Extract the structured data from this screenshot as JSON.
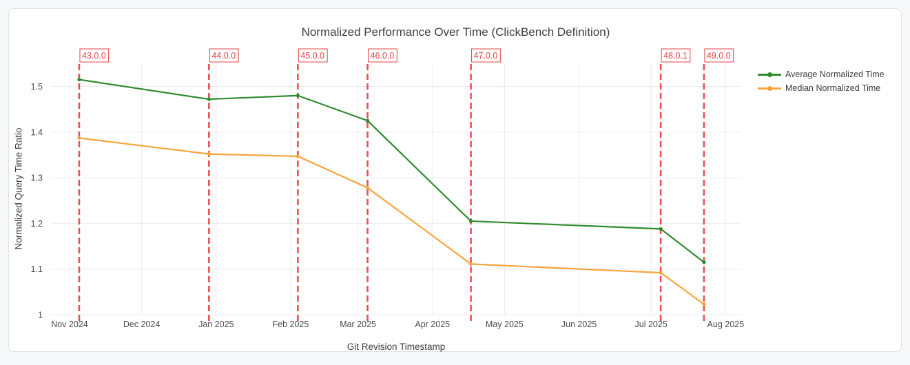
{
  "chart_data": {
    "type": "line",
    "title": "Normalized Performance Over Time (ClickBench Definition)",
    "xlabel": "Git Revision Timestamp",
    "ylabel": "Normalized Query Time Ratio",
    "legend_position": "top-right",
    "grid": true,
    "ylim": [
      1.0,
      1.55
    ],
    "x_tick_labels": [
      "Nov 2024",
      "Dec 2024",
      "Jan 2025",
      "Feb 2025",
      "Mar 2025",
      "Apr 2025",
      "May 2025",
      "Jun 2025",
      "Jul 2025",
      "Aug 2025"
    ],
    "x_tick_dates": [
      "2024-11-01",
      "2024-12-01",
      "2025-01-01",
      "2025-02-01",
      "2025-03-01",
      "2025-04-01",
      "2025-05-01",
      "2025-06-01",
      "2025-07-01",
      "2025-08-01"
    ],
    "y_tick_labels": [
      "1",
      "1.1",
      "1.2",
      "1.3",
      "1.4",
      "1.5"
    ],
    "y_tick_values": [
      1.0,
      1.1,
      1.2,
      1.3,
      1.4,
      1.5
    ],
    "x": [
      "2024-11-05",
      "2024-12-29",
      "2025-02-04",
      "2025-03-05",
      "2025-04-17",
      "2025-07-05",
      "2025-07-23"
    ],
    "series": [
      {
        "name": "Average Normalized Time",
        "color": "#2e8b2e",
        "values": [
          1.515,
          1.472,
          1.48,
          1.425,
          1.205,
          1.188,
          1.115
        ]
      },
      {
        "name": "Median Normalized Time",
        "color": "#f8a43d",
        "values": [
          1.387,
          1.352,
          1.347,
          1.278,
          1.111,
          1.092,
          1.023
        ]
      }
    ],
    "annotations": [
      {
        "label": "43.0.0",
        "date": "2024-11-05"
      },
      {
        "label": "44.0.0",
        "date": "2024-12-29"
      },
      {
        "label": "45.0.0",
        "date": "2025-02-04"
      },
      {
        "label": "46.0.0",
        "date": "2025-03-05"
      },
      {
        "label": "47.0.0",
        "date": "2025-04-17"
      },
      {
        "label": "48.0.1",
        "date": "2025-07-05"
      },
      {
        "label": "49.0.0",
        "date": "2025-07-23"
      }
    ],
    "annotation_color": "#e84343",
    "grid_color": "#e9ecef",
    "tick_color": "#4a4a4a"
  }
}
